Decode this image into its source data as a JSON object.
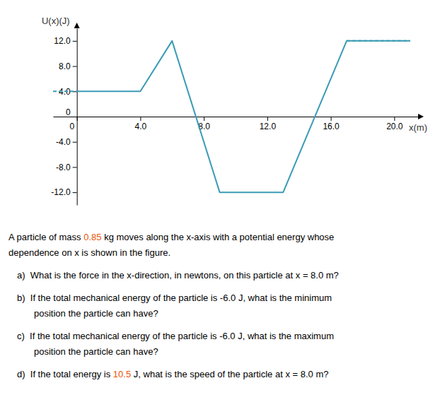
{
  "chart_data": {
    "type": "line",
    "xlabel": "x(m)",
    "ylabel": "U(x)(J)",
    "series": [
      {
        "x": [
          0,
          4,
          6,
          9,
          13,
          17,
          21
        ],
        "values": [
          4,
          4,
          12,
          -12,
          -12,
          12,
          12
        ],
        "color": "#3a9bb5",
        "line_style": "solid"
      },
      {
        "x": [
          -1.5,
          0
        ],
        "values": [
          4,
          4
        ],
        "color": "#3a9bb5",
        "line_style": "dashed"
      },
      {
        "x": [
          17,
          21
        ],
        "values": [
          12,
          12
        ],
        "color": "#3a9bb5",
        "line_style": "dashed"
      }
    ],
    "xlim": [
      -1.5,
      21.5
    ],
    "ylim": [
      -14,
      14
    ],
    "xticks": [
      {
        "value": 0,
        "label": "0"
      },
      {
        "value": 4,
        "label": "4.0"
      },
      {
        "value": 8,
        "label": "8.0"
      },
      {
        "value": 12,
        "label": "12.0"
      },
      {
        "value": 16,
        "label": "16.0"
      },
      {
        "value": 20,
        "label": "20.0"
      }
    ],
    "yticks": [
      {
        "value": -12,
        "label": "-12.0"
      },
      {
        "value": -8,
        "label": "-8.0"
      },
      {
        "value": -4,
        "label": "-4.0"
      },
      0,
      {
        "value": 4,
        "label": "4.0"
      },
      {
        "value": 8,
        "label": "8.0"
      },
      {
        "value": 12,
        "label": "12.0"
      }
    ],
    "grid": false,
    "annotations": [
      {
        "lines": [
          [
            {
              "text": "A particle of mass ",
              "color": "#000000"
            },
            {
              "text": "0.85",
              "color": "#e8550a"
            },
            {
              "text": " kg moves along the x-axis with a potential energy whose",
              "color": "#000000"
            }
          ],
          [
            {
              "text": "dependence on x is shown in the figure.",
              "color": "#000000"
            }
          ]
        ]
      },
      {
        "lines": [
          [
            {
              "text": "a)  What is the force in the x-direction, in newtons, on this particle at x = 8.0 m?",
              "color": "#000000"
            }
          ]
        ]
      },
      {
        "lines": [
          [
            {
              "text": "b)  If the total mechanical energy of the particle is -6.0 J, what is the minimum",
              "color": "#000000"
            }
          ],
          [
            {
              "text": "position the particle can have?",
              "color": "#000000"
            }
          ]
        ]
      },
      {
        "lines": [
          [
            {
              "text": "c)  If the total mechanical energy of the particle is -6.0 J, what is the maximum",
              "color": "#000000"
            }
          ],
          [
            {
              "text": "position the particle can have?",
              "color": "#000000"
            }
          ]
        ]
      },
      {
        "lines": [
          [
            {
              "text": "d)  If the total energy is ",
              "color": "#000000"
            },
            {
              "text": "10.5",
              "color": "#e8550a"
            },
            {
              "text": " J, what is the speed of the particle at x = 8.0 m?",
              "color": "#000000"
            }
          ]
        ]
      }
    ]
  }
}
